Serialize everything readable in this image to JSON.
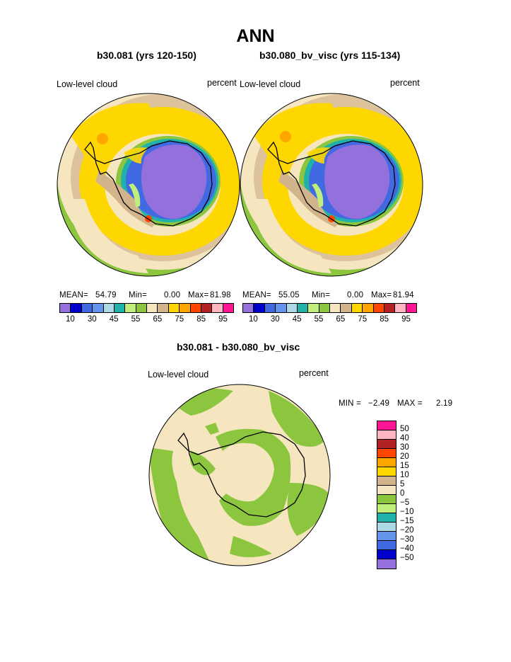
{
  "title": "ANN",
  "colors": {
    "levels": [
      "#9370db",
      "#0000cd",
      "#4169e1",
      "#6495ed",
      "#add8e6",
      "#20b2aa",
      "#c0ee7a",
      "#8cc63f",
      "#f5e6c0",
      "#d2b48c",
      "#ffd700",
      "#ffa500",
      "#ff4500",
      "#b22222",
      "#ffb6c1",
      "#ff1493"
    ],
    "diff_levels": [
      "#ff1493",
      "#ffb6c1",
      "#b22222",
      "#ff4500",
      "#ffa500",
      "#ffd700",
      "#d2b48c",
      "#f5e6c0",
      "#8cc63f",
      "#c0ee7a",
      "#20b2aa",
      "#add8e6",
      "#6495ed",
      "#4169e1",
      "#0000cd",
      "#9370db"
    ]
  },
  "panels": [
    {
      "subtitle": "b30.081 (yrs 120-150)",
      "left_label": "Low-level cloud",
      "right_label": "percent",
      "mean_label": "MEAN=",
      "mean": "54.79",
      "min_label": "Min=",
      "min": "0.00",
      "max_label": "Max=",
      "max": "81.98"
    },
    {
      "subtitle": "b30.080_bv_visc (yrs 115-134)",
      "left_label": "Low-level cloud",
      "right_label": "percent",
      "mean_label": "MEAN=",
      "mean": "55.05",
      "min_label": "Min=",
      "min": "0.00",
      "max_label": "Max=",
      "max": "81.94"
    }
  ],
  "colorbar_ticks": [
    "10",
    "30",
    "45",
    "55",
    "65",
    "75",
    "85",
    "95"
  ],
  "diff_panel": {
    "subtitle": "b30.081 - b30.080_bv_visc",
    "left_label": "Low-level cloud",
    "right_label": "percent",
    "min_label": "MIN =",
    "min": "−2.49",
    "max_label": "MAX =",
    "max": "2.19",
    "ticks": [
      "50",
      "40",
      "30",
      "20",
      "15",
      "10",
      "5",
      "0",
      "−5",
      "−10",
      "−15",
      "−20",
      "−30",
      "−40",
      "−50"
    ]
  },
  "chart_data": [
    {
      "type": "heatmap",
      "title": "b30.081 (yrs 120-150)",
      "variable": "Low-level cloud",
      "units": "percent",
      "projection": "south polar stereographic",
      "stats": {
        "mean": 54.79,
        "min": 0.0,
        "max": 81.98
      },
      "contour_levels": [
        10,
        30,
        45,
        55,
        65,
        75,
        85,
        95
      ]
    },
    {
      "type": "heatmap",
      "title": "b30.080_bv_visc (yrs 115-134)",
      "variable": "Low-level cloud",
      "units": "percent",
      "projection": "south polar stereographic",
      "stats": {
        "mean": 55.05,
        "min": 0.0,
        "max": 81.94
      },
      "contour_levels": [
        10,
        30,
        45,
        55,
        65,
        75,
        85,
        95
      ]
    },
    {
      "type": "heatmap",
      "title": "b30.081 - b30.080_bv_visc",
      "variable": "Low-level cloud",
      "units": "percent",
      "projection": "south polar stereographic",
      "stats": {
        "min": -2.49,
        "max": 2.19
      },
      "contour_levels": [
        50,
        40,
        30,
        20,
        15,
        10,
        5,
        0,
        -5,
        -10,
        -15,
        -20,
        -30,
        -40,
        -50
      ]
    }
  ]
}
